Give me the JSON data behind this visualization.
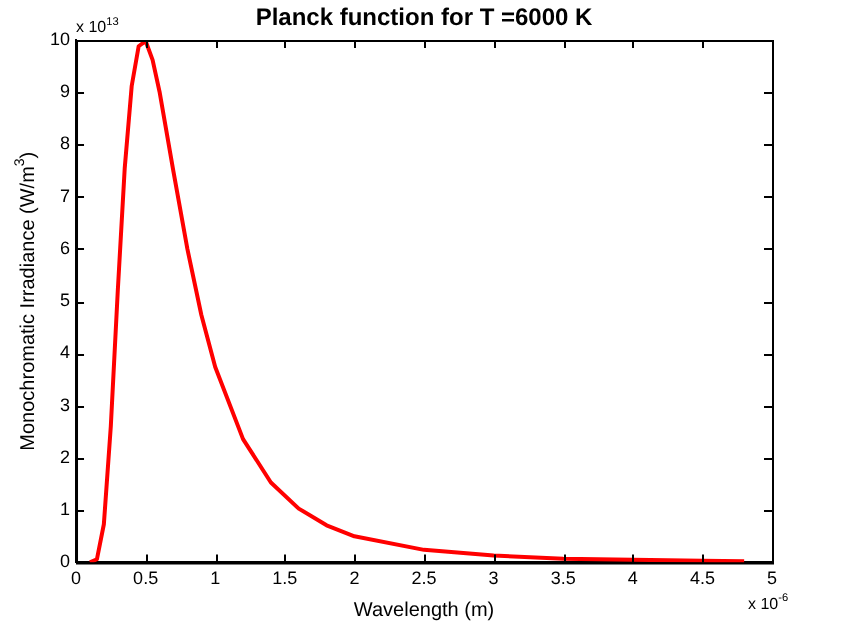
{
  "chart_data": {
    "type": "line",
    "title": "Planck function for T =6000 K",
    "xlabel": "Wavelength (m)",
    "ylabel": "Monochromatic Irradiance (W/m$^{3}$)",
    "annotations": [
      "x 10$^{13}$",
      "x 10$^{-6}$"
    ],
    "x": [
      0.1,
      0.15,
      0.2,
      0.25,
      0.3,
      0.35,
      0.4,
      0.45,
      0.5,
      0.55,
      0.6,
      0.7,
      0.8,
      0.9,
      1.0,
      1.2,
      1.4,
      1.6,
      1.8,
      2.0,
      2.5,
      3.0,
      3.5,
      4.0,
      4.5,
      4.8
    ],
    "series": [
      {
        "color": "#ff0000",
        "values": [
          0,
          0.06,
          0.73,
          2.61,
          5.2,
          7.55,
          9.12,
          9.88,
          9.98,
          9.62,
          9.01,
          7.48,
          6.0,
          4.74,
          3.74,
          2.36,
          1.53,
          1.03,
          0.71,
          0.5,
          0.24,
          0.13,
          0.07,
          0.05,
          0.03,
          0.02
        ]
      }
    ],
    "xlim": [
      0,
      5
    ],
    "xticks": [
      0,
      0.5,
      1,
      1.5,
      2,
      2.5,
      3,
      3.5,
      4,
      4.5,
      5
    ],
    "ylim": [
      0,
      10
    ],
    "yticks": [
      0,
      1,
      2,
      3,
      4,
      5,
      6,
      7,
      8,
      9,
      10
    ],
    "grid": false,
    "legend": false,
    "marker": "none",
    "line_style": "solid"
  }
}
